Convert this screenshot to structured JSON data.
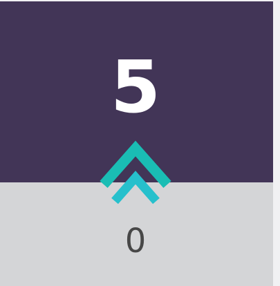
{
  "top_value": "5",
  "bottom_value": "0"
}
